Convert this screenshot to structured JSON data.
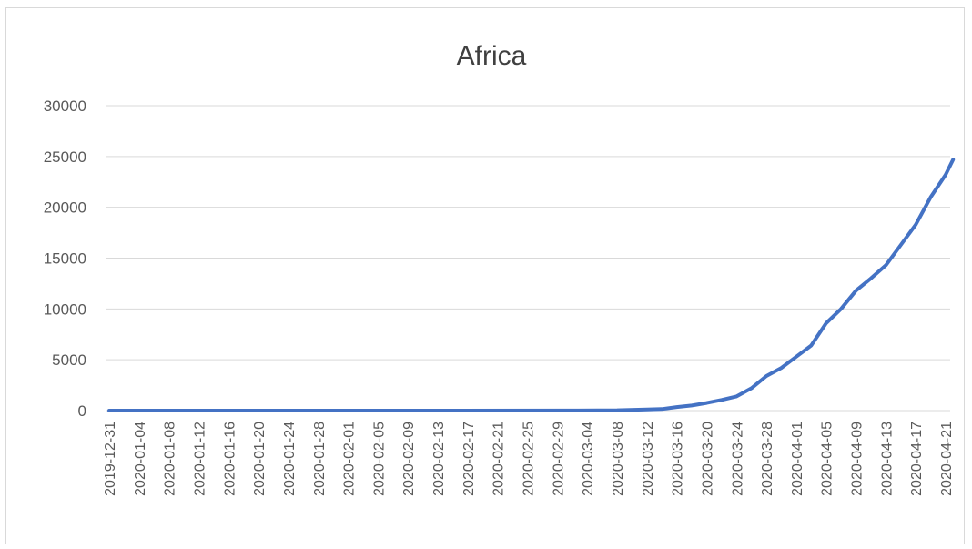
{
  "chart_data": {
    "type": "line",
    "title": "Africa",
    "xlabel": "",
    "ylabel": "",
    "ylim": [
      0,
      30000
    ],
    "yticks": [
      0,
      5000,
      10000,
      15000,
      20000,
      25000,
      30000
    ],
    "ytick_labels": [
      "0",
      "5000",
      "10000",
      "15000",
      "20000",
      "25000",
      "30000"
    ],
    "xrange": [
      "2019-12-31",
      "2020-04-22"
    ],
    "xtick_labels": [
      "2019-12-31",
      "2020-01-04",
      "2020-01-08",
      "2020-01-12",
      "2020-01-16",
      "2020-01-20",
      "2020-01-24",
      "2020-01-28",
      "2020-02-01",
      "2020-02-05",
      "2020-02-09",
      "2020-02-13",
      "2020-02-17",
      "2020-02-21",
      "2020-02-25",
      "2020-02-29",
      "2020-03-04",
      "2020-03-08",
      "2020-03-12",
      "2020-03-16",
      "2020-03-20",
      "2020-03-24",
      "2020-03-28",
      "2020-04-01",
      "2020-04-05",
      "2020-04-09",
      "2020-04-13",
      "2020-04-17",
      "2020-04-21"
    ],
    "grid": true,
    "legend": "none",
    "series": [
      {
        "color": "#4472c4",
        "points": [
          [
            "2019-12-31",
            0
          ],
          [
            "2020-02-14",
            0
          ],
          [
            "2020-03-01",
            5
          ],
          [
            "2020-03-08",
            40
          ],
          [
            "2020-03-12",
            120
          ],
          [
            "2020-03-14",
            150
          ],
          [
            "2020-03-16",
            350
          ],
          [
            "2020-03-18",
            500
          ],
          [
            "2020-03-20",
            750
          ],
          [
            "2020-03-22",
            1050
          ],
          [
            "2020-03-24",
            1400
          ],
          [
            "2020-03-26",
            2200
          ],
          [
            "2020-03-28",
            3400
          ],
          [
            "2020-03-30",
            4200
          ],
          [
            "2020-04-01",
            5300
          ],
          [
            "2020-04-03",
            6400
          ],
          [
            "2020-04-05",
            8600
          ],
          [
            "2020-04-07",
            10000
          ],
          [
            "2020-04-09",
            11800
          ],
          [
            "2020-04-11",
            13000
          ],
          [
            "2020-04-13",
            14300
          ],
          [
            "2020-04-15",
            16300
          ],
          [
            "2020-04-17",
            18300
          ],
          [
            "2020-04-19",
            21000
          ],
          [
            "2020-04-21",
            23200
          ],
          [
            "2020-04-22",
            24700
          ]
        ]
      }
    ]
  }
}
